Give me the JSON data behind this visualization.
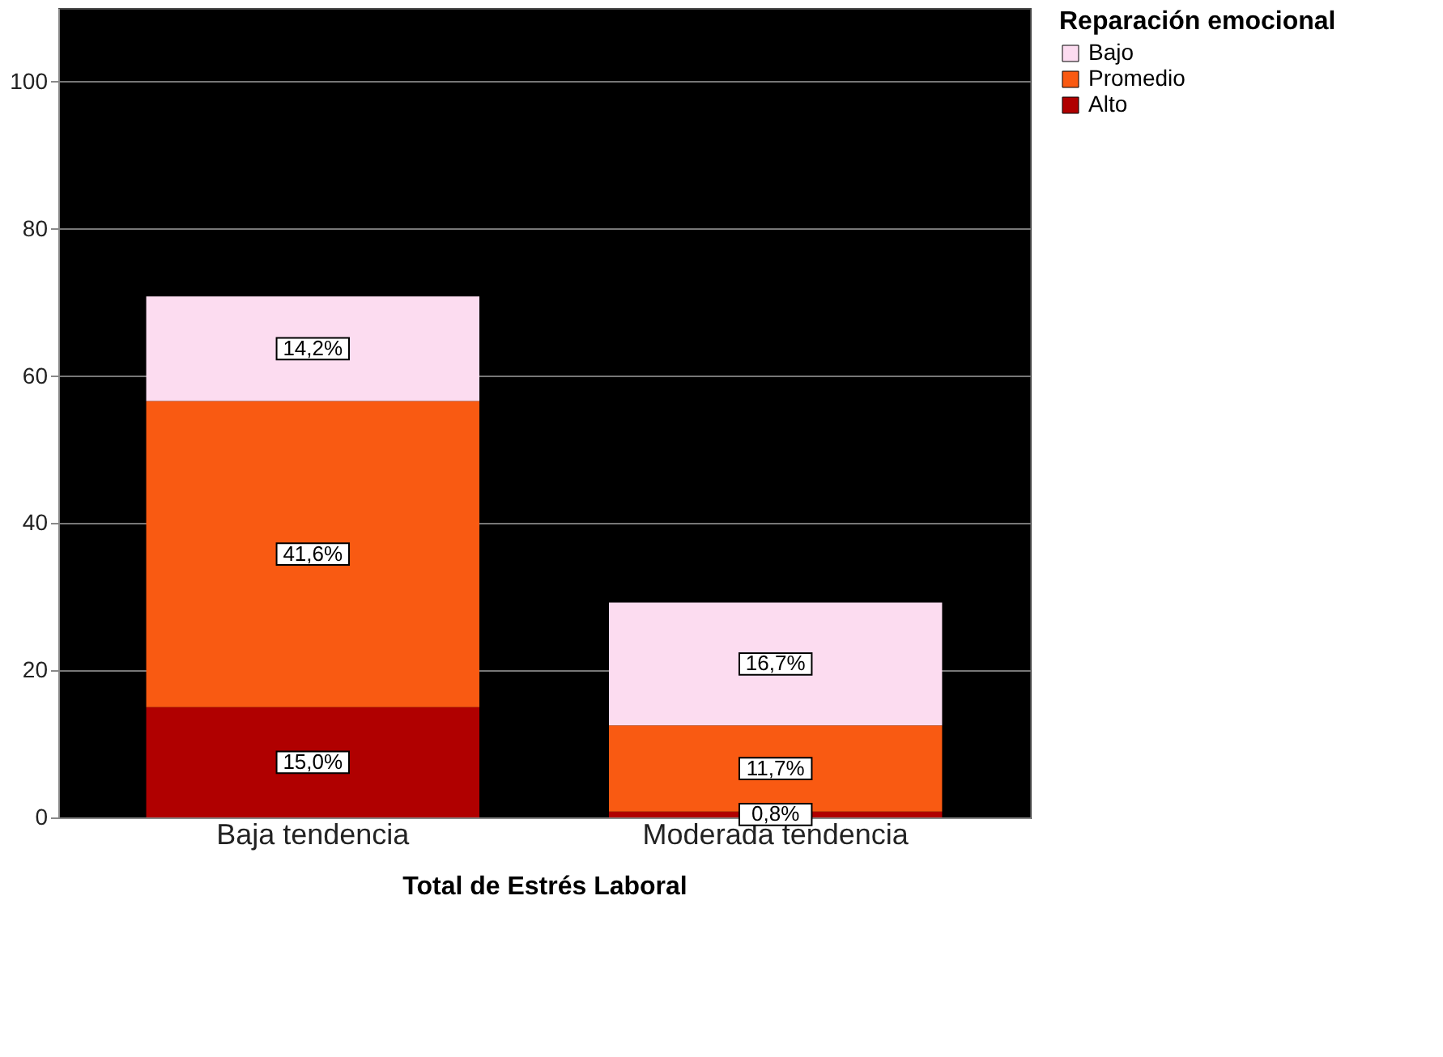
{
  "chart_data": {
    "type": "bar",
    "stacked": true,
    "categories": [
      "Baja tendencia",
      "Moderada tendencia"
    ],
    "xlabel": "Total de Estrés Laboral",
    "legend_title": "Reparación emocional",
    "legend": "top right",
    "grid": "y",
    "ylim": [
      0,
      110
    ],
    "yticks": [
      0,
      20,
      40,
      60,
      80,
      100
    ],
    "series": [
      {
        "name": "Alto",
        "color": "#b00000",
        "values": [
          15.0,
          0.8
        ],
        "value_labels": [
          "15,0%",
          "0,8%"
        ]
      },
      {
        "name": "Promedio",
        "color": "#f95a12",
        "values": [
          41.6,
          11.7
        ],
        "value_labels": [
          "41,6%",
          "11,7%"
        ]
      },
      {
        "name": "Bajo",
        "color": "#fcdcf0",
        "values": [
          14.2,
          16.7
        ],
        "value_labels": [
          "14,2%",
          "16,7%"
        ]
      }
    ]
  }
}
